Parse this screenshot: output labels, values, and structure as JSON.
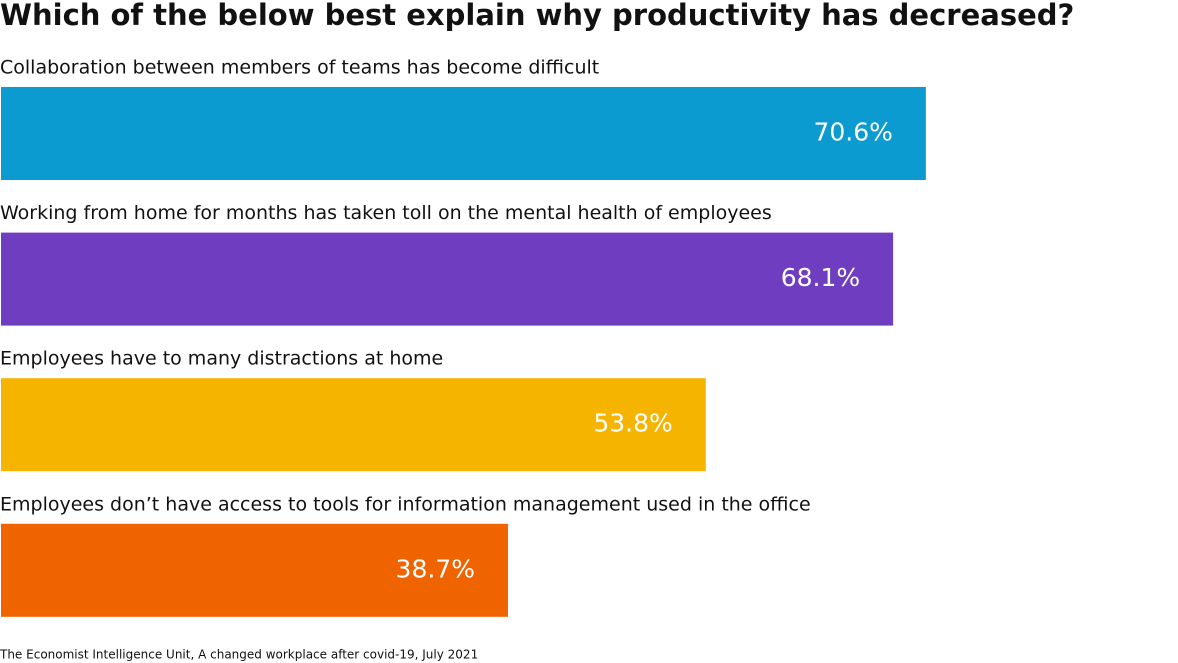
{
  "chart_data": {
    "type": "bar",
    "orientation": "horizontal",
    "title": "Which of the below best explain why productivity has decreased?",
    "categories": [
      "Collaboration between members of teams has become difficult",
      "Working from home for months has taken toll on the mental health of employees",
      "Employees have to many distractions at home",
      "Employees don’t have access to tools for information management used in the office"
    ],
    "values": [
      70.6,
      68.1,
      53.8,
      38.7
    ],
    "value_labels": [
      "70.6%",
      "68.1%",
      "53.8%",
      "38.7%"
    ],
    "colors": [
      "#0b9bd0",
      "#6f3dbf",
      "#f4b400",
      "#f06400"
    ],
    "source": "The Economist Intelligence Unit, A changed workplace after covid-19, July 2021"
  }
}
